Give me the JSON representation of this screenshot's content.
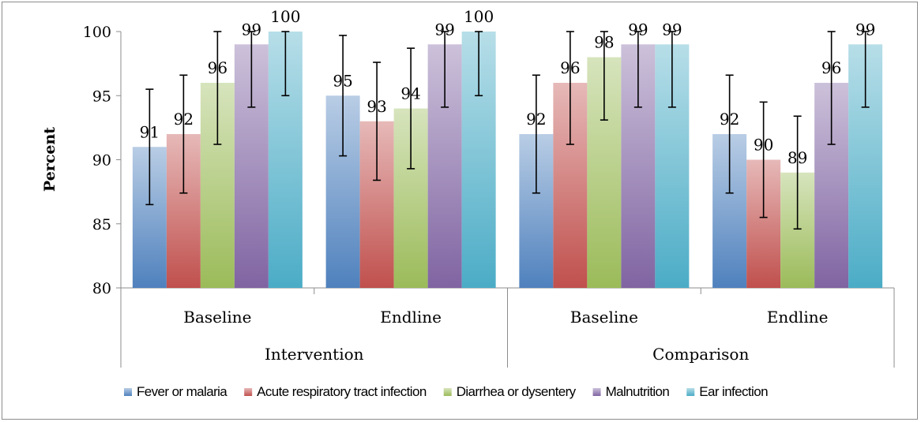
{
  "chart_data": {
    "type": "bar",
    "ylabel": "Percent",
    "ylim": [
      80,
      100
    ],
    "yticks": [
      80,
      85,
      90,
      95,
      100
    ],
    "groups": [
      {
        "name": "Intervention",
        "categories": [
          "Baseline",
          "Endline"
        ]
      },
      {
        "name": "Comparison",
        "categories": [
          "Baseline",
          "Endline"
        ]
      }
    ],
    "series": [
      {
        "name": "Fever or malaria",
        "color": "#4f81bd",
        "values": [
          91,
          95,
          92,
          92
        ],
        "error_low": [
          86.5,
          90.3,
          87.4,
          87.4
        ],
        "error_high": [
          95.5,
          99.7,
          96.6,
          96.6
        ]
      },
      {
        "name": "Acute respiratory tract infection",
        "color": "#c0504d",
        "values": [
          92,
          93,
          96,
          90
        ],
        "error_low": [
          87.4,
          88.4,
          91.2,
          85.5
        ],
        "error_high": [
          96.6,
          97.6,
          100,
          94.5
        ]
      },
      {
        "name": "Diarrhea or dysentery",
        "color": "#9bbb59",
        "values": [
          96,
          94,
          98,
          89
        ],
        "error_low": [
          91.2,
          89.3,
          93.1,
          84.6
        ],
        "error_high": [
          100,
          98.7,
          100,
          93.4
        ]
      },
      {
        "name": "Malnutrition",
        "color": "#8064a2",
        "values": [
          99,
          99,
          99,
          96
        ],
        "error_low": [
          94.1,
          94.1,
          94.1,
          91.2
        ],
        "error_high": [
          100,
          100,
          100,
          100
        ]
      },
      {
        "name": "Ear infection",
        "color": "#4bacc6",
        "values": [
          100,
          100,
          99,
          99
        ],
        "error_low": [
          95.0,
          95.0,
          94.1,
          94.1
        ],
        "error_high": [
          100,
          100,
          100,
          100
        ]
      }
    ],
    "legend_position": "bottom",
    "grid": false
  }
}
